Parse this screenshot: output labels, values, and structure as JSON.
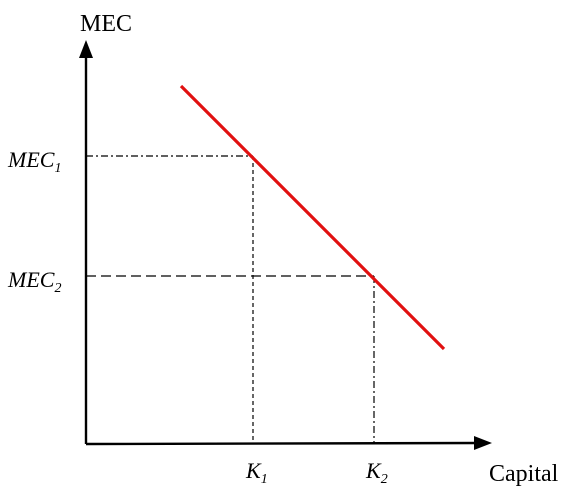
{
  "diagram": {
    "y_axis_title": "MEC",
    "x_axis_title": "Capital",
    "mec_points": [
      {
        "base": "MEC",
        "sub": "1"
      },
      {
        "base": "MEC",
        "sub": "2"
      }
    ],
    "capital_points": [
      {
        "base": "K",
        "sub": "1"
      },
      {
        "base": "K",
        "sub": "2"
      }
    ],
    "curve_color": "#e11010",
    "axis_color": "#000000"
  }
}
